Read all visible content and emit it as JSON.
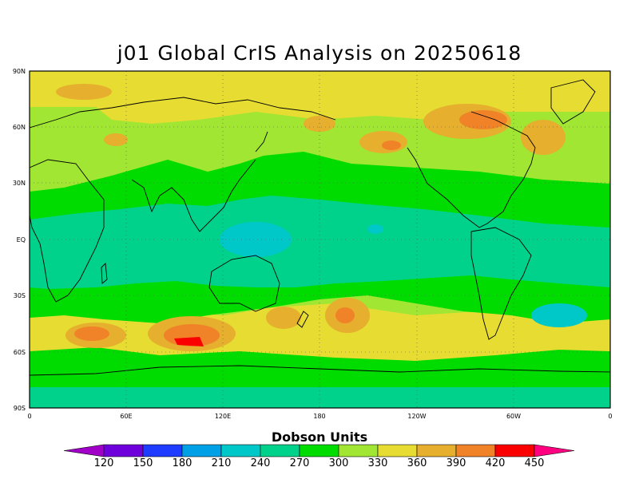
{
  "title": "j01 Global CrIS Analysis on 20250618",
  "map": {
    "projection": "cylindrical equidistant",
    "lon_range": [
      0,
      360
    ],
    "lat_range": [
      -90,
      90
    ],
    "coastlines": true,
    "grid": "dotted",
    "lat_labels": [
      "90N",
      "60N",
      "30N",
      "EQ",
      "30S",
      "60S",
      "90S"
    ],
    "lon_labels": [
      "0",
      "60E",
      "120E",
      "180",
      "120W",
      "60W",
      "0"
    ]
  },
  "colorbar": {
    "title": "Dobson Units",
    "levels": [
      120,
      150,
      180,
      210,
      240,
      270,
      300,
      330,
      360,
      390,
      420,
      450
    ],
    "labels": [
      "120",
      "150",
      "180",
      "210",
      "240",
      "270",
      "300",
      "330",
      "360",
      "390",
      "420",
      "450"
    ],
    "colors": [
      "#a000c8",
      "#6e00dc",
      "#1e3cff",
      "#00a0e6",
      "#00c8c8",
      "#00d28c",
      "#00dc00",
      "#a0e632",
      "#e6dc32",
      "#e6af2d",
      "#f08228",
      "#fa0000",
      "#ff0080"
    ]
  }
}
